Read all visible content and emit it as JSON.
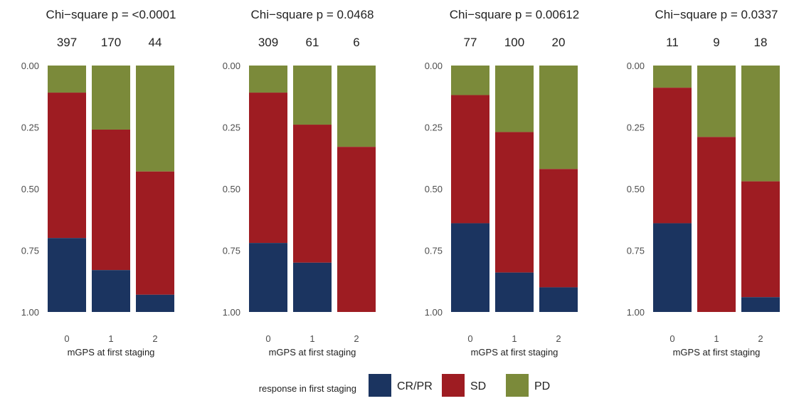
{
  "chart_data": [
    {
      "type": "bar",
      "stacked": true,
      "title": "Chi−square p = <0.0001",
      "xlabel": "mGPS at first staging",
      "ylabel": "",
      "ylim": [
        0,
        1
      ],
      "y_reversed": true,
      "yticks": [
        "0.00",
        "0.25",
        "0.50",
        "0.75",
        "1.00"
      ],
      "categories": [
        "0",
        "1",
        "2"
      ],
      "counts": [
        "397",
        "170",
        "44"
      ],
      "series": [
        {
          "name": "CR/PR",
          "values": [
            0.3,
            0.17,
            0.07
          ]
        },
        {
          "name": "SD",
          "values": [
            0.59,
            0.57,
            0.5
          ]
        },
        {
          "name": "PD",
          "values": [
            0.11,
            0.26,
            0.43
          ]
        }
      ]
    },
    {
      "type": "bar",
      "stacked": true,
      "title": "Chi−square p = 0.0468",
      "xlabel": "mGPS at first staging",
      "ylabel": "",
      "ylim": [
        0,
        1
      ],
      "y_reversed": true,
      "yticks": [
        "0.00",
        "0.25",
        "0.50",
        "0.75",
        "1.00"
      ],
      "categories": [
        "0",
        "1",
        "2"
      ],
      "counts": [
        "309",
        "61",
        "6"
      ],
      "series": [
        {
          "name": "CR/PR",
          "values": [
            0.28,
            0.2,
            0.0
          ]
        },
        {
          "name": "SD",
          "values": [
            0.61,
            0.56,
            0.67
          ]
        },
        {
          "name": "PD",
          "values": [
            0.11,
            0.24,
            0.33
          ]
        }
      ]
    },
    {
      "type": "bar",
      "stacked": true,
      "title": "Chi−square p = 0.00612",
      "xlabel": "mGPS at first staging",
      "ylabel": "",
      "ylim": [
        0,
        1
      ],
      "y_reversed": true,
      "yticks": [
        "0.00",
        "0.25",
        "0.50",
        "0.75",
        "1.00"
      ],
      "categories": [
        "0",
        "1",
        "2"
      ],
      "counts": [
        "77",
        "100",
        "20"
      ],
      "series": [
        {
          "name": "CR/PR",
          "values": [
            0.36,
            0.16,
            0.1
          ]
        },
        {
          "name": "SD",
          "values": [
            0.52,
            0.57,
            0.48
          ]
        },
        {
          "name": "PD",
          "values": [
            0.12,
            0.27,
            0.42
          ]
        }
      ]
    },
    {
      "type": "bar",
      "stacked": true,
      "title": "Chi−square p = 0.0337",
      "xlabel": "mGPS at first staging",
      "ylabel": "",
      "ylim": [
        0,
        1
      ],
      "y_reversed": true,
      "yticks": [
        "0.00",
        "0.25",
        "0.50",
        "0.75",
        "1.00"
      ],
      "categories": [
        "0",
        "1",
        "2"
      ],
      "counts": [
        "11",
        "9",
        "18"
      ],
      "series": [
        {
          "name": "CR/PR",
          "values": [
            0.36,
            0.0,
            0.06
          ]
        },
        {
          "name": "SD",
          "values": [
            0.55,
            0.71,
            0.47
          ]
        },
        {
          "name": "PD",
          "values": [
            0.09,
            0.29,
            0.47
          ]
        }
      ]
    }
  ],
  "legend": {
    "title": "response in first staging",
    "placement": "bottom",
    "items": [
      {
        "name": "CR/PR",
        "color": "#1b3460"
      },
      {
        "name": "SD",
        "color": "#9e1c22"
      },
      {
        "name": "PD",
        "color": "#7b8a3a"
      }
    ]
  },
  "colors": {
    "CR/PR": "#1b3460",
    "SD": "#9e1c22",
    "PD": "#7b8a3a",
    "text": "#222222",
    "axis_text": "#4d4d4d"
  }
}
